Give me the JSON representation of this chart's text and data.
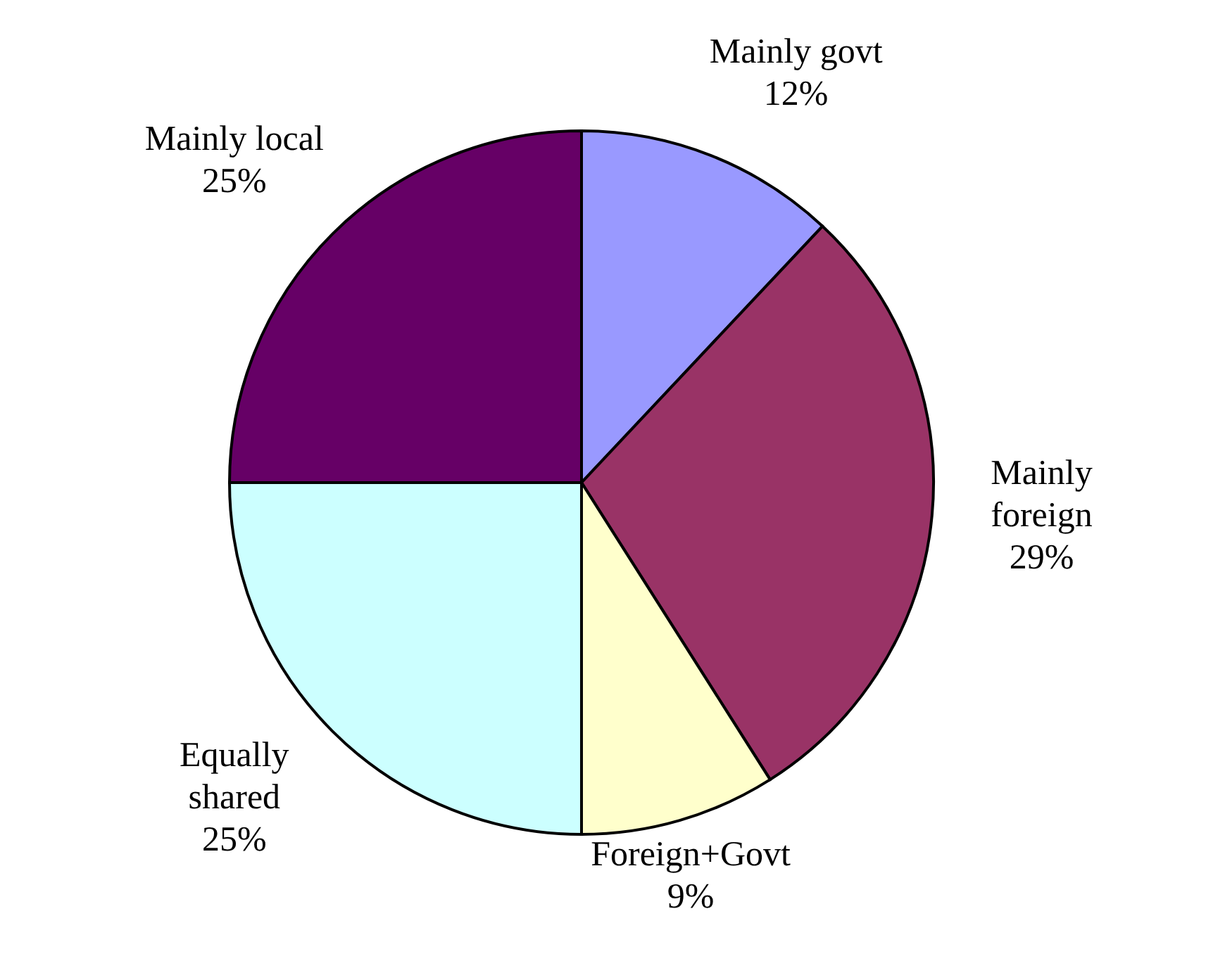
{
  "chart_data": {
    "type": "pie",
    "categories": [
      "Mainly govt",
      "Mainly foreign",
      "Foreign+Govt",
      "Equally shared",
      "Mainly local"
    ],
    "values": [
      12,
      29,
      9,
      25,
      25
    ],
    "value_labels": [
      "12%",
      "29%",
      "9%",
      "25%",
      "25%"
    ],
    "colors": [
      "#9999ff",
      "#993366",
      "#ffffcc",
      "#ccffff",
      "#660066"
    ],
    "legend": false
  }
}
